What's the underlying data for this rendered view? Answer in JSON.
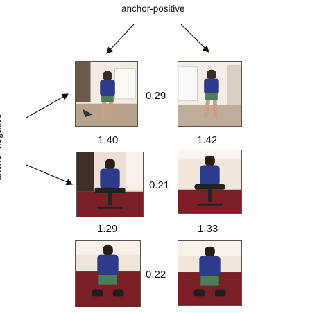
{
  "labels": {
    "top": "anchor-positive",
    "side": "anchor-negative"
  },
  "pairs": {
    "row1_positive": "0.29",
    "row2_positive": "0.21",
    "row3_positive": "0.22",
    "row12_negative_left": "1.40",
    "row12_negative_right": "1.42",
    "row23_negative_left": "1.29",
    "row23_negative_right": "1.33"
  },
  "image_set": {
    "count": 6,
    "poses": [
      "walking",
      "walking",
      "sitting",
      "sitting",
      "kneeling",
      "kneeling"
    ]
  },
  "colors": {
    "text": "#111111",
    "arrow": "#111111",
    "floor": "#7a1f24",
    "shirt": "#2e3a8a",
    "shorts": "#4a7d5a",
    "wall": "#efe6dc"
  }
}
